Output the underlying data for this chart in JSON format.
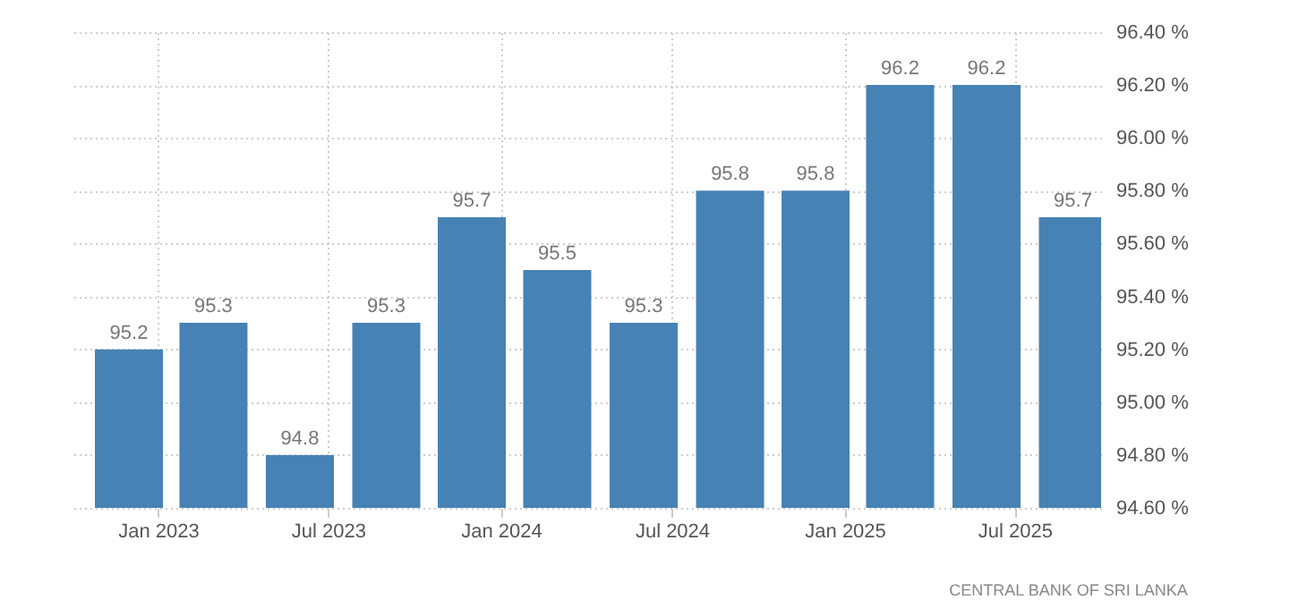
{
  "chart_data": {
    "type": "bar",
    "x": [
      "2022-12",
      "2023-03",
      "2023-06",
      "2023-09",
      "2023-12",
      "2024-03",
      "2024-06",
      "2024-09",
      "2024-12",
      "2025-03",
      "2025-06",
      "2025-09"
    ],
    "values": [
      95.2,
      95.3,
      94.8,
      95.3,
      95.7,
      95.5,
      95.3,
      95.8,
      95.8,
      96.2,
      96.2,
      95.7
    ],
    "color": "#4682b4",
    "data_labels": true,
    "xlim": [
      "2022-10",
      "2025-10"
    ],
    "xticks": [
      {
        "value": "2023-01",
        "label": "Jan 2023"
      },
      {
        "value": "2023-07",
        "label": "Jul 2023"
      },
      {
        "value": "2024-01",
        "label": "Jan 2024"
      },
      {
        "value": "2024-07",
        "label": "Jul 2024"
      },
      {
        "value": "2025-01",
        "label": "Jan 2025"
      },
      {
        "value": "2025-07",
        "label": "Jul 2025"
      }
    ],
    "ylim": [
      94.6,
      96.4
    ],
    "yticks": [
      {
        "value": 94.6,
        "label": "94.60 %"
      },
      {
        "value": 94.8,
        "label": "94.80 %"
      },
      {
        "value": 95.0,
        "label": "95.00 %"
      },
      {
        "value": 95.2,
        "label": "95.20 %"
      },
      {
        "value": 95.4,
        "label": "95.40 %"
      },
      {
        "value": 95.6,
        "label": "95.60 %"
      },
      {
        "value": 95.8,
        "label": "95.80 %"
      },
      {
        "value": 96.0,
        "label": "96.00 %"
      },
      {
        "value": 96.2,
        "label": "96.20 %"
      },
      {
        "value": 96.4,
        "label": "96.40 %"
      }
    ],
    "grid": true,
    "annotations": [
      "CENTRAL BANK OF SRI LANKA"
    ]
  }
}
